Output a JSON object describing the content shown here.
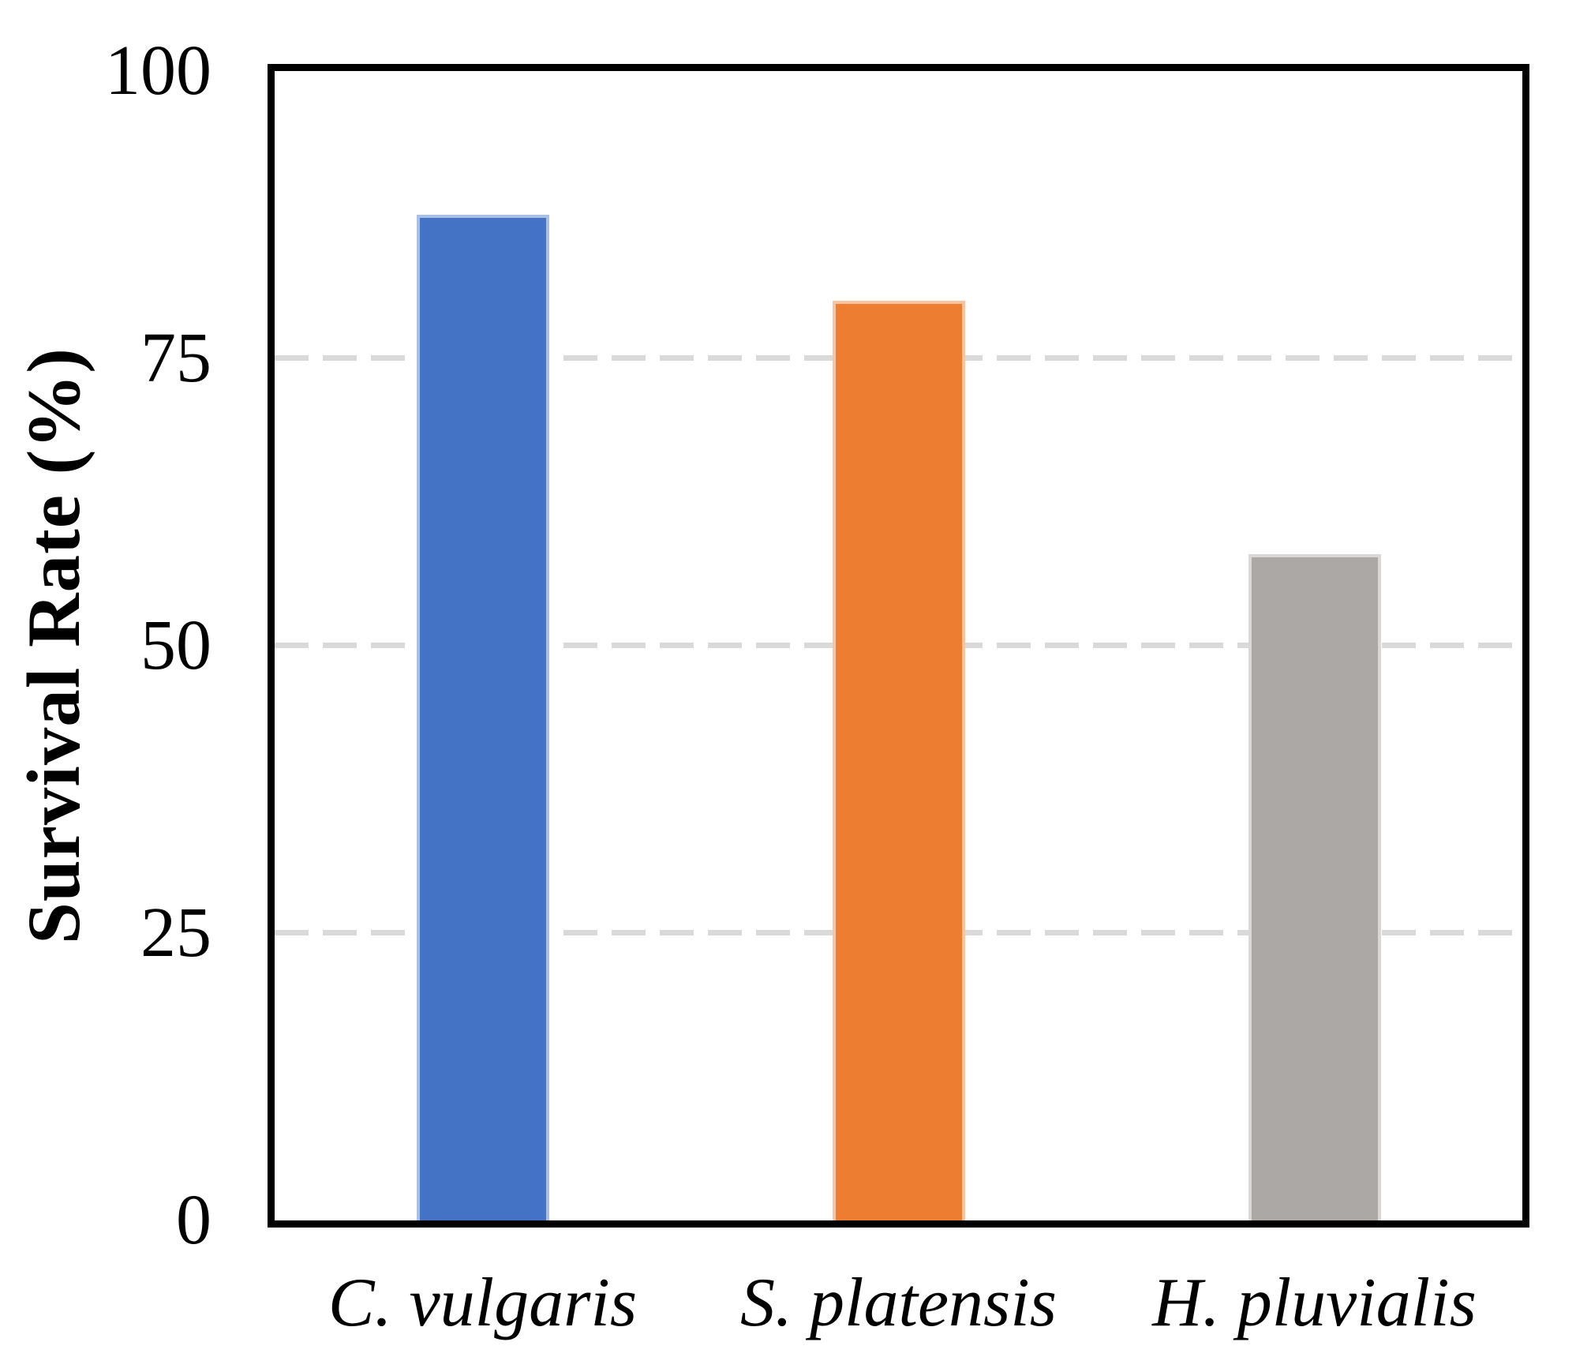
{
  "figure": {
    "background": "#FFFFFF",
    "frame_color": "#000000",
    "gridline_color": "#D9D9D9",
    "gridline_style": "dashed"
  },
  "chart_data": {
    "type": "bar",
    "title": "",
    "xlabel": "",
    "ylabel": "Survival Rate (%)",
    "categories": [
      "C. vulgaris",
      "S. platensis",
      "H. pluvialis"
    ],
    "values": [
      87.5,
      80,
      58
    ],
    "bar_colors": [
      "#4472C4",
      "#ED7D31",
      "#ABA8A6"
    ],
    "ylim": [
      0,
      100
    ],
    "yticks": [
      0,
      25,
      50,
      75,
      100
    ],
    "gridlines_at": [
      25,
      50,
      75
    ],
    "legend_position": "none",
    "grid": "horizontal-dashed",
    "category_label_style": "italic"
  }
}
